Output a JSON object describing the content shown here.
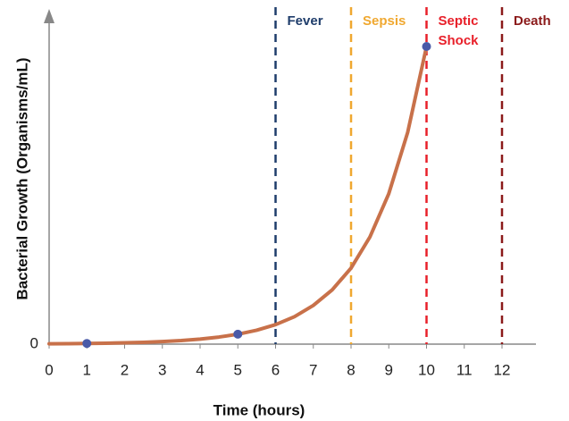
{
  "chart_data": {
    "type": "line",
    "xlabel": "Time (hours)",
    "ylabel": "Bacterial Growth (Organisms/mL)",
    "xlim": [
      0,
      12
    ],
    "xticks": [
      0,
      1,
      2,
      3,
      4,
      5,
      6,
      7,
      8,
      9,
      10,
      11,
      12
    ],
    "ylim": [
      0,
      100
    ],
    "yticks": [
      0
    ],
    "series": [
      {
        "color": "#c8714a",
        "x": [
          0,
          0.5,
          1,
          1.5,
          2,
          2.5,
          3,
          3.5,
          4,
          4.5,
          5,
          5.5,
          6,
          6.5,
          7,
          7.5,
          8,
          8.5,
          9,
          9.5,
          10
        ],
        "values": [
          0.1,
          0.14,
          0.2,
          0.28,
          0.39,
          0.55,
          0.77,
          1.08,
          1.53,
          2.14,
          3.0,
          4.2,
          5.9,
          8.3,
          11.7,
          16.4,
          23.0,
          32.4,
          45.5,
          64,
          90
        ]
      },
      {
        "type": "scatter",
        "color": "#4a5aa8",
        "x": [
          1,
          5,
          10
        ],
        "values": [
          0.2,
          3.0,
          90
        ]
      }
    ],
    "annotations": [
      {
        "x": 6,
        "lines": [
          "Fever"
        ],
        "color": "#1f3d6b"
      },
      {
        "x": 8,
        "lines": [
          "Sepsis"
        ],
        "color": "#f0a830"
      },
      {
        "x": 10,
        "lines": [
          "Septic",
          "Shock"
        ],
        "color": "#e8202a"
      },
      {
        "x": 12,
        "lines": [
          "Death"
        ],
        "color": "#8b1a1a"
      }
    ]
  }
}
